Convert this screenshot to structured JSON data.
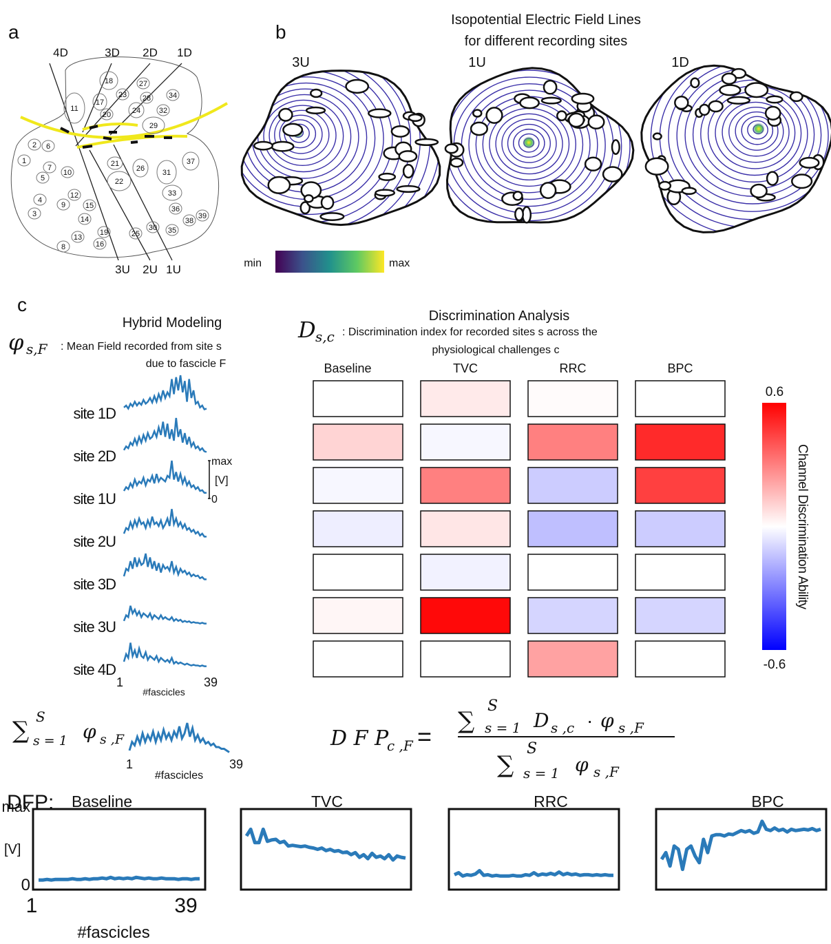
{
  "panel_a": {
    "label": "a",
    "electrodes_top": [
      "4D",
      "3D",
      "2D",
      "1D"
    ],
    "electrodes_bottom": [
      "3U",
      "2U",
      "1U"
    ],
    "fascicles": [
      1,
      2,
      3,
      4,
      5,
      6,
      7,
      8,
      9,
      10,
      11,
      12,
      13,
      14,
      15,
      16,
      17,
      18,
      19,
      20,
      21,
      22,
      23,
      24,
      25,
      26,
      27,
      28,
      29,
      30,
      31,
      32,
      33,
      34,
      35,
      36,
      37,
      38,
      39
    ]
  },
  "panel_b": {
    "label": "b",
    "title": [
      "Isopotential Electric Field Lines",
      "for different recording sites"
    ],
    "sites": [
      "3U",
      "1U",
      "1D"
    ],
    "colorbar_min": "min",
    "colorbar_max": "max"
  },
  "panel_c": {
    "label": "c",
    "hybrid_title": "Hybrid Modeling",
    "phi_symbol": "φ",
    "phi_sub": "s,F",
    "phi_text": ": Mean Field recorded from site s",
    "phi_text2": "due to fascicle F",
    "disc_title": "Discrimination Analysis",
    "d_symbol": "D",
    "d_sub": "s,c",
    "d_text": ": Discrimination index for recorded sites s across the",
    "d_text2": "physiological challenges c",
    "sum_symbol": "∑",
    "sum_sup": "S",
    "sum_sub": "s = 1",
    "sum_term": "φ",
    "sum_term_sub": "s ,F",
    "dfp_label": "DFP:",
    "formula": {
      "lhs": "D F P",
      "lhs_sub": "c ,F",
      "equals": "=",
      "num_sum": "∑",
      "num_sup": "S",
      "num_sub": "s = 1",
      "num_d": "D",
      "num_d_sub": "s ,c",
      "num_dot": "·",
      "num_phi": "φ",
      "num_phi_sub": "s ,F",
      "den_sum": "∑",
      "den_sup": "S",
      "den_sub": "s = 1",
      "den_phi": "φ",
      "den_phi_sub": "s ,F"
    }
  },
  "chart_data": [
    {
      "type": "line",
      "x": [
        1,
        2,
        3,
        4,
        5,
        6,
        7,
        8,
        9,
        10,
        11,
        12,
        13,
        14,
        15,
        16,
        17,
        18,
        19,
        20,
        21,
        22,
        23,
        24,
        25,
        26,
        27,
        28,
        29,
        30,
        31,
        32,
        33,
        34,
        35,
        36,
        37,
        38,
        39
      ],
      "xlim": [
        1,
        39
      ],
      "xticks": [
        1,
        39
      ],
      "xlabel": "#fascicles",
      "ylim": [
        0,
        1
      ],
      "yticks": [
        0,
        {
          "value": 1,
          "label": "max"
        }
      ],
      "ylabel": "[V]",
      "series": [
        {
          "name": "site 1D",
          "color": "#2a7ab9",
          "values": [
            0.15,
            0.2,
            0.12,
            0.25,
            0.18,
            0.3,
            0.2,
            0.28,
            0.22,
            0.35,
            0.25,
            0.3,
            0.4,
            0.28,
            0.45,
            0.3,
            0.5,
            0.35,
            0.6,
            0.4,
            0.55,
            0.45,
            0.9,
            0.5,
            0.95,
            0.6,
            1.0,
            0.55,
            0.85,
            0.3,
            0.9,
            0.4,
            0.6,
            0.25,
            0.3,
            0.15,
            0.2,
            0.1,
            0.12
          ]
        },
        {
          "name": "site 2D",
          "color": "#2a7ab9",
          "values": [
            0.15,
            0.25,
            0.2,
            0.35,
            0.28,
            0.45,
            0.3,
            0.5,
            0.35,
            0.55,
            0.4,
            0.6,
            0.45,
            0.5,
            0.65,
            0.5,
            0.75,
            0.55,
            0.9,
            0.5,
            0.85,
            0.45,
            0.7,
            0.4,
            1.0,
            0.5,
            0.7,
            0.35,
            0.6,
            0.3,
            0.5,
            0.25,
            0.35,
            0.2,
            0.25,
            0.15,
            0.2,
            0.12,
            0.1
          ]
        },
        {
          "name": "site 1U",
          "color": "#2a7ab9",
          "values": [
            0.2,
            0.3,
            0.25,
            0.4,
            0.3,
            0.5,
            0.35,
            0.45,
            0.4,
            0.55,
            0.35,
            0.5,
            0.45,
            0.6,
            0.4,
            0.65,
            0.45,
            0.55,
            0.5,
            0.45,
            0.6,
            0.55,
            1.0,
            0.5,
            0.7,
            0.45,
            0.65,
            0.4,
            0.55,
            0.35,
            0.45,
            0.3,
            0.35,
            0.25,
            0.3,
            0.2,
            0.22,
            0.15,
            0.15
          ]
        },
        {
          "name": "site 2U",
          "color": "#2a7ab9",
          "values": [
            0.2,
            0.35,
            0.3,
            0.5,
            0.35,
            0.55,
            0.4,
            0.6,
            0.45,
            0.5,
            0.35,
            0.55,
            0.4,
            0.65,
            0.45,
            0.5,
            0.4,
            0.55,
            0.35,
            0.45,
            0.6,
            0.4,
            0.85,
            0.45,
            0.6,
            0.4,
            0.5,
            0.35,
            0.45,
            0.3,
            0.35,
            0.25,
            0.3,
            0.2,
            0.25,
            0.15,
            0.2,
            0.12,
            0.12
          ]
        },
        {
          "name": "site 3D",
          "color": "#2a7ab9",
          "values": [
            0.2,
            0.4,
            0.35,
            0.6,
            0.4,
            0.7,
            0.45,
            0.65,
            0.5,
            0.55,
            0.8,
            0.45,
            0.7,
            0.4,
            0.6,
            0.35,
            0.55,
            0.3,
            0.5,
            0.4,
            0.45,
            0.35,
            0.6,
            0.3,
            0.45,
            0.25,
            0.4,
            0.3,
            0.35,
            0.25,
            0.3,
            0.2,
            0.25,
            0.2,
            0.22,
            0.15,
            0.18,
            0.12,
            0.12
          ]
        },
        {
          "name": "site 3U",
          "color": "#2a7ab9",
          "values": [
            0.15,
            0.3,
            0.25,
            0.55,
            0.35,
            0.45,
            0.3,
            0.4,
            0.25,
            0.35,
            0.3,
            0.25,
            0.35,
            0.2,
            0.3,
            0.25,
            0.2,
            0.3,
            0.2,
            0.25,
            0.2,
            0.18,
            0.25,
            0.15,
            0.2,
            0.15,
            0.18,
            0.12,
            0.15,
            0.12,
            0.14,
            0.1,
            0.12,
            0.1,
            0.1,
            0.08,
            0.1,
            0.08,
            0.08
          ]
        },
        {
          "name": "site 4D",
          "color": "#2a7ab9",
          "values": [
            0.2,
            0.4,
            0.3,
            0.7,
            0.35,
            0.5,
            0.3,
            0.55,
            0.35,
            0.3,
            0.45,
            0.25,
            0.35,
            0.3,
            0.25,
            0.35,
            0.2,
            0.3,
            0.25,
            0.2,
            0.25,
            0.18,
            0.3,
            0.15,
            0.2,
            0.15,
            0.18,
            0.15,
            0.12,
            0.15,
            0.12,
            0.1,
            0.12,
            0.1,
            0.1,
            0.08,
            0.1,
            0.08,
            0.08
          ]
        }
      ]
    },
    {
      "type": "line",
      "x": [
        1,
        2,
        3,
        4,
        5,
        6,
        7,
        8,
        9,
        10,
        11,
        12,
        13,
        14,
        15,
        16,
        17,
        18,
        19,
        20,
        21,
        22,
        23,
        24,
        25,
        26,
        27,
        28,
        29,
        30,
        31,
        32,
        33,
        34,
        35,
        36,
        37,
        38,
        39
      ],
      "xlim": [
        1,
        39
      ],
      "xticks": [
        1,
        39
      ],
      "xlabel": "#fascicles",
      "ylim": [
        0,
        1
      ],
      "color": "#2a7ab9",
      "values": [
        0.2,
        0.45,
        0.35,
        0.6,
        0.4,
        0.7,
        0.45,
        0.65,
        0.5,
        0.75,
        0.45,
        0.7,
        0.5,
        0.8,
        0.55,
        0.7,
        0.5,
        0.75,
        0.6,
        0.9,
        0.55,
        0.7,
        1.0,
        0.6,
        0.85,
        0.5,
        0.65,
        0.45,
        0.55,
        0.4,
        0.45,
        0.35,
        0.4,
        0.3,
        0.3,
        0.25,
        0.25,
        0.2,
        0.15
      ]
    },
    {
      "type": "heatmap",
      "columns": [
        "Baseline",
        "TVC",
        "RRC",
        "BPC"
      ],
      "values": [
        [
          0,
          0.05,
          0.01,
          0
        ],
        [
          0.1,
          -0.02,
          0.3,
          0.5
        ],
        [
          -0.02,
          0.3,
          -0.12,
          0.45
        ],
        [
          -0.04,
          0.06,
          -0.15,
          -0.12
        ],
        [
          0,
          -0.03,
          0,
          0
        ],
        [
          0.02,
          0.58,
          -0.1,
          -0.1
        ],
        [
          0,
          0,
          0.22,
          0
        ]
      ],
      "zlim": [
        -0.6,
        0.6
      ],
      "zticks": [
        -0.6,
        0.6
      ],
      "colormap": [
        "#0000ff",
        "#ffffff",
        "#ff0000"
      ],
      "colorbar_label": "Channel Discrimination Ability"
    },
    {
      "type": "line",
      "title": "Baseline",
      "x": [
        1,
        2,
        3,
        4,
        5,
        6,
        7,
        8,
        9,
        10,
        11,
        12,
        13,
        14,
        15,
        16,
        17,
        18,
        19,
        20,
        21,
        22,
        23,
        24,
        25,
        26,
        27,
        28,
        29,
        30,
        31,
        32,
        33,
        34,
        35,
        36,
        37,
        38,
        39
      ],
      "xlim": [
        1,
        39
      ],
      "xticks": [
        1,
        39
      ],
      "xlabel": "#fascicles",
      "ylim": [
        0,
        1
      ],
      "yticks": [
        0,
        {
          "value": 1,
          "label": "max"
        }
      ],
      "ylabel": "[V]",
      "color": "#2a7ab9",
      "values": [
        0.04,
        0.04,
        0.05,
        0.04,
        0.05,
        0.05,
        0.05,
        0.05,
        0.06,
        0.05,
        0.05,
        0.06,
        0.05,
        0.06,
        0.06,
        0.07,
        0.06,
        0.08,
        0.06,
        0.07,
        0.06,
        0.07,
        0.06,
        0.08,
        0.07,
        0.06,
        0.07,
        0.06,
        0.06,
        0.07,
        0.06,
        0.06,
        0.06,
        0.05,
        0.06,
        0.06,
        0.05,
        0.06,
        0.06
      ]
    },
    {
      "type": "line",
      "title": "TVC",
      "x": [
        1,
        2,
        3,
        4,
        5,
        6,
        7,
        8,
        9,
        10,
        11,
        12,
        13,
        14,
        15,
        16,
        17,
        18,
        19,
        20,
        21,
        22,
        23,
        24,
        25,
        26,
        27,
        28,
        29,
        30,
        31,
        32,
        33,
        34,
        35,
        36,
        37,
        38,
        39
      ],
      "xlim": [
        1,
        39
      ],
      "ylim": [
        0,
        1
      ],
      "color": "#2a7ab9",
      "values": [
        0.7,
        0.8,
        0.6,
        0.6,
        0.8,
        0.62,
        0.64,
        0.65,
        0.6,
        0.62,
        0.55,
        0.56,
        0.55,
        0.54,
        0.55,
        0.53,
        0.52,
        0.5,
        0.52,
        0.48,
        0.5,
        0.47,
        0.48,
        0.45,
        0.46,
        0.42,
        0.45,
        0.38,
        0.42,
        0.36,
        0.44,
        0.38,
        0.4,
        0.36,
        0.42,
        0.34,
        0.4,
        0.38,
        0.37
      ]
    },
    {
      "type": "line",
      "title": "RRC",
      "x": [
        1,
        2,
        3,
        4,
        5,
        6,
        7,
        8,
        9,
        10,
        11,
        12,
        13,
        14,
        15,
        16,
        17,
        18,
        19,
        20,
        21,
        22,
        23,
        24,
        25,
        26,
        27,
        28,
        29,
        30,
        31,
        32,
        33,
        34,
        35,
        36,
        37,
        38,
        39
      ],
      "xlim": [
        1,
        39
      ],
      "ylim": [
        0,
        1
      ],
      "color": "#2a7ab9",
      "values": [
        0.12,
        0.15,
        0.1,
        0.12,
        0.11,
        0.13,
        0.18,
        0.11,
        0.12,
        0.1,
        0.11,
        0.1,
        0.1,
        0.1,
        0.11,
        0.1,
        0.1,
        0.12,
        0.11,
        0.15,
        0.11,
        0.13,
        0.12,
        0.14,
        0.12,
        0.16,
        0.12,
        0.14,
        0.12,
        0.13,
        0.11,
        0.12,
        0.12,
        0.11,
        0.12,
        0.11,
        0.12,
        0.11,
        0.11
      ]
    },
    {
      "type": "line",
      "title": "BPC",
      "x": [
        1,
        2,
        3,
        4,
        5,
        6,
        7,
        8,
        9,
        10,
        11,
        12,
        13,
        14,
        15,
        16,
        17,
        18,
        19,
        20,
        21,
        22,
        23,
        24,
        25,
        26,
        27,
        28,
        29,
        30,
        31,
        32,
        33,
        34,
        35,
        36,
        37,
        38,
        39
      ],
      "xlim": [
        1,
        39
      ],
      "ylim": [
        0,
        1
      ],
      "color": "#2a7ab9",
      "values": [
        0.35,
        0.45,
        0.25,
        0.55,
        0.5,
        0.2,
        0.5,
        0.55,
        0.4,
        0.3,
        0.65,
        0.45,
        0.7,
        0.72,
        0.72,
        0.7,
        0.73,
        0.72,
        0.75,
        0.78,
        0.76,
        0.78,
        0.74,
        0.76,
        0.92,
        0.8,
        0.78,
        0.82,
        0.78,
        0.8,
        0.76,
        0.8,
        0.78,
        0.79,
        0.8,
        0.79,
        0.81,
        0.78,
        0.8
      ]
    }
  ]
}
